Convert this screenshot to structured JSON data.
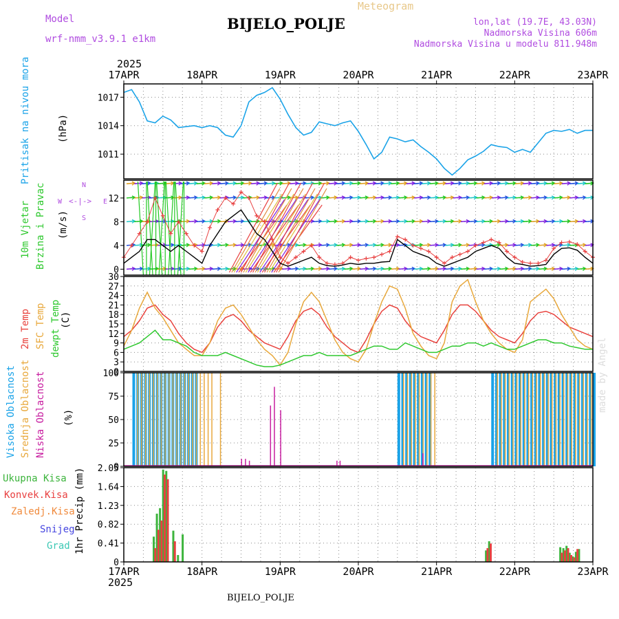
{
  "header": {
    "model_label": "Model",
    "model_name": "wrf-nmm_v3.9.1 e1km",
    "station": "BIJELO_POLJE",
    "meteogram": "Meteogram",
    "lonlat": "lon,lat (19.7E, 43.03N)",
    "elevation": "Nadmorska Visina 606m",
    "model_elevation": "Nadmorska Visina u modelu 811.948m",
    "footer_station": "BIJELO_POLJE",
    "credit": "made by Angel",
    "year_top": "2025",
    "year_bottom": "2025"
  },
  "colors": {
    "pressure": "#1aa3e8",
    "temp2m": "#e8413c",
    "sfc": "#e8a83c",
    "dewpt": "#2ec82e",
    "wind_speed": "#000000",
    "gust": "#e84040",
    "high_cloud": "#1aa3e8",
    "mid_cloud": "#e8a83c",
    "low_cloud": "#c81ea0",
    "total_precip": "#3cb43c",
    "conv_precip": "#e84040",
    "frozen": "#f08a3c",
    "snow": "#4646e0",
    "hail": "#3cc8b4",
    "purple_text": "#b04ce0"
  },
  "x_axis": {
    "dates": [
      "17APR",
      "18APR",
      "19APR",
      "20APR",
      "21APR",
      "22APR",
      "23APR"
    ]
  },
  "panel_labels": {
    "pressure": {
      "name": "Pritisak na nivou mora",
      "unit": "(hPa)"
    },
    "wind": {
      "name1": "10m Vjetar",
      "name2": "Brzina i Pravac",
      "unit": "(m/s)"
    },
    "temp": {
      "name1": "2m Temp",
      "name2": "SFC Temp",
      "name3": "dewpt Temp",
      "unit": "(C)"
    },
    "cloud": {
      "name1": "Visoka Oblacnost",
      "name2": "Srednja Oblacnost",
      "name3": "Niska Oblacnost",
      "unit": "(%)"
    },
    "precip": {
      "unit": "1hr Precip (mm)"
    }
  },
  "precip_legend": [
    "Ukupna Kisa",
    "Konvek.Kisa",
    "Zaledj.Kisa",
    "Snijeg",
    "Grad"
  ],
  "compass": {
    "n": "N",
    "s": "S",
    "e": "E",
    "w": "W"
  },
  "chart_data": [
    {
      "type": "line",
      "name": "pressure",
      "ylabel": "(hPa)",
      "ylim": [
        1008.4,
        1018.4
      ],
      "yticks": [
        1011,
        1014,
        1017
      ],
      "x_days": [
        0,
        0.1,
        0.2,
        0.3,
        0.4,
        0.5,
        0.6,
        0.7,
        0.8,
        0.9,
        1,
        1.1,
        1.2,
        1.3,
        1.4,
        1.5,
        1.6,
        1.7,
        1.8,
        1.9,
        2,
        2.1,
        2.2,
        2.3,
        2.4,
        2.5,
        2.6,
        2.7,
        2.8,
        2.9,
        3,
        3.1,
        3.2,
        3.3,
        3.4,
        3.5,
        3.6,
        3.7,
        3.8,
        3.9,
        4,
        4.1,
        4.2,
        4.3,
        4.4,
        4.5,
        4.6,
        4.7,
        4.8,
        4.9,
        5,
        5.1,
        5.2,
        5.3,
        5.4,
        5.5,
        5.6,
        5.7,
        5.8,
        5.9,
        6
      ],
      "values": [
        1017.5,
        1017.8,
        1016.5,
        1014.5,
        1014.3,
        1015.0,
        1014.6,
        1013.8,
        1013.9,
        1014.0,
        1013.8,
        1014.0,
        1013.8,
        1013.0,
        1012.8,
        1014.0,
        1016.5,
        1017.2,
        1017.5,
        1018.0,
        1016.8,
        1015.2,
        1013.8,
        1013.0,
        1013.3,
        1014.4,
        1014.2,
        1014.0,
        1014.3,
        1014.5,
        1013.4,
        1012.0,
        1010.5,
        1011.2,
        1012.8,
        1012.6,
        1012.3,
        1012.5,
        1011.8,
        1011.2,
        1010.5,
        1009.5,
        1008.8,
        1009.5,
        1010.4,
        1010.8,
        1011.3,
        1012.0,
        1011.8,
        1011.7,
        1011.2,
        1011.5,
        1011.2,
        1012.2,
        1013.2,
        1013.5,
        1013.4,
        1013.6,
        1013.2,
        1013.5,
        1013.5
      ]
    },
    {
      "type": "line",
      "name": "wind",
      "ylabel": "(m/s)",
      "ylim": [
        -1,
        15
      ],
      "yticks": [
        0,
        4,
        8,
        12
      ],
      "x_days": [
        0,
        0.1,
        0.2,
        0.3,
        0.4,
        0.5,
        0.6,
        0.7,
        0.8,
        0.9,
        1,
        1.1,
        1.2,
        1.3,
        1.4,
        1.5,
        1.6,
        1.7,
        1.8,
        1.9,
        2,
        2.1,
        2.2,
        2.3,
        2.4,
        2.5,
        2.6,
        2.7,
        2.8,
        2.9,
        3,
        3.1,
        3.2,
        3.3,
        3.4,
        3.5,
        3.6,
        3.7,
        3.8,
        3.9,
        4,
        4.1,
        4.2,
        4.3,
        4.4,
        4.5,
        4.6,
        4.7,
        4.8,
        4.9,
        5,
        5.1,
        5.2,
        5.3,
        5.4,
        5.5,
        5.6,
        5.7,
        5.8,
        5.9,
        6
      ],
      "series": [
        {
          "key": "speed",
          "values": [
            1,
            2,
            3,
            5,
            5,
            4,
            3,
            4,
            3,
            2,
            1,
            4,
            6,
            8,
            9,
            10,
            8,
            6,
            5,
            3,
            1,
            0.5,
            1,
            1.5,
            2,
            1,
            0.6,
            0.5,
            0.7,
            1,
            0.8,
            1,
            1,
            1.2,
            1.3,
            5,
            4,
            3,
            2.5,
            2,
            1,
            0.5,
            1,
            1.5,
            2,
            3,
            3.5,
            4,
            3.5,
            2,
            1,
            0.8,
            0.5,
            0.6,
            0.8,
            2.5,
            3.5,
            3.6,
            3.2,
            2,
            1
          ]
        },
        {
          "key": "gust",
          "values": [
            2,
            4,
            6,
            8,
            12,
            9,
            6,
            8,
            6,
            4,
            3,
            7,
            10,
            12,
            11,
            13,
            12,
            9,
            8,
            5,
            2,
            1,
            2,
            3,
            4,
            2,
            1,
            0.8,
            1,
            2,
            1.5,
            1.8,
            2,
            2.5,
            3,
            5.5,
            5,
            4,
            3.5,
            3,
            2,
            1,
            2,
            2.5,
            3,
            4,
            4.5,
            5,
            4.5,
            3,
            2,
            1.2,
            1,
            1,
            1.5,
            3.5,
            4.5,
            4.6,
            4.2,
            3,
            2
          ]
        }
      ]
    },
    {
      "type": "line",
      "name": "temperature",
      "ylabel": "(C)",
      "ylim": [
        0,
        30
      ],
      "yticks": [
        0,
        3,
        6,
        9,
        12,
        15,
        18,
        21,
        24,
        27,
        30
      ],
      "x_days": [
        0,
        0.1,
        0.2,
        0.3,
        0.4,
        0.5,
        0.6,
        0.7,
        0.8,
        0.9,
        1,
        1.1,
        1.2,
        1.3,
        1.4,
        1.5,
        1.6,
        1.7,
        1.8,
        1.9,
        2,
        2.1,
        2.2,
        2.3,
        2.4,
        2.5,
        2.6,
        2.7,
        2.8,
        2.9,
        3,
        3.1,
        3.2,
        3.3,
        3.4,
        3.5,
        3.6,
        3.7,
        3.8,
        3.9,
        4,
        4.1,
        4.2,
        4.3,
        4.4,
        4.5,
        4.6,
        4.7,
        4.8,
        4.9,
        5,
        5.1,
        5.2,
        5.3,
        5.4,
        5.5,
        5.6,
        5.7,
        5.8,
        5.9,
        6
      ],
      "series": [
        {
          "key": "t2m",
          "values": [
            11,
            13,
            16,
            20,
            21,
            18,
            16,
            12,
            9,
            7,
            6,
            9,
            14,
            17,
            18,
            16,
            13,
            11,
            9,
            8,
            7,
            11,
            16,
            19,
            20,
            18,
            14,
            11,
            9,
            7,
            6,
            10,
            15,
            19,
            21,
            20,
            16,
            13,
            11,
            10,
            9,
            13,
            18,
            21,
            21,
            19,
            16,
            13,
            11,
            10,
            9,
            12,
            16,
            18.5,
            19,
            18,
            16,
            14,
            13,
            12,
            11
          ]
        },
        {
          "key": "sfc",
          "values": [
            8,
            13,
            20,
            25,
            20,
            17,
            13,
            9,
            7,
            5,
            5,
            9,
            16,
            20,
            21,
            18,
            14,
            10,
            7,
            5,
            2,
            6,
            15,
            22,
            25,
            22,
            16,
            10,
            6,
            4,
            3,
            7,
            15,
            22,
            27,
            26,
            20,
            12,
            8,
            5,
            4,
            9,
            22,
            27,
            29,
            22,
            16,
            12,
            9,
            7,
            6,
            10,
            22,
            24,
            26,
            23,
            18,
            14,
            10,
            8,
            7
          ]
        },
        {
          "key": "dewpt",
          "values": [
            7,
            8,
            9,
            11,
            13,
            10,
            10,
            9,
            8,
            6,
            5,
            5,
            5,
            6,
            5,
            4,
            3,
            2,
            1.5,
            1.5,
            2,
            3,
            4,
            5,
            5,
            6,
            5,
            5,
            5,
            5,
            6,
            7,
            8,
            8,
            7,
            7,
            9,
            8,
            7,
            6,
            6,
            7,
            8,
            8,
            9,
            9,
            8,
            9,
            8,
            7,
            7,
            8,
            9,
            10,
            10,
            9,
            9,
            8,
            7.5,
            7,
            7
          ]
        }
      ]
    },
    {
      "type": "bar",
      "name": "cloud_cover",
      "ylabel": "(%)",
      "ylim": [
        0,
        100
      ],
      "yticks": [
        0,
        25,
        50,
        75,
        100
      ],
      "bars": [
        {
          "key": "high",
          "ranges": [
            [
              0.11,
              0.95
            ],
            [
              3.5,
              3.9
            ],
            [
              4.7,
              6.0
            ]
          ],
          "value": 100
        },
        {
          "key": "mid",
          "ranges": [
            [
              0.15,
              1.1
            ],
            [
              3.55,
              3.95
            ],
            [
              4.75,
              5.95
            ]
          ],
          "value": 100
        },
        {
          "key": "mid_single",
          "x": [
            1.12,
            1.23
          ],
          "value": 100
        },
        {
          "key": "low",
          "x": [
            1.5,
            1.55,
            1.6,
            1.87,
            1.92,
            2.0,
            2.72,
            2.76,
            3.82
          ],
          "values": [
            8,
            8,
            6,
            65,
            85,
            60,
            6,
            6,
            14
          ]
        }
      ]
    },
    {
      "type": "bar",
      "name": "precipitation",
      "ylabel": "1hr Precip (mm)",
      "ylim": [
        0,
        2.05
      ],
      "yticks": [
        0,
        0.41,
        0.82,
        1.23,
        1.64,
        2.05
      ],
      "series": [
        {
          "key": "total",
          "x": [
            0.37,
            0.41,
            0.45,
            0.49,
            0.53,
            0.62,
            0.68,
            0.74,
            4.62,
            4.66,
            5.57,
            5.61,
            5.65,
            5.69,
            5.73,
            5.77,
            5.81
          ],
          "values": [
            0.55,
            1.05,
            1.17,
            2.01,
            1.98,
            0.68,
            0.15,
            0.6,
            0.25,
            0.45,
            0.32,
            0.3,
            0.35,
            0.2,
            0.12,
            0.22,
            0.28
          ]
        },
        {
          "key": "conv",
          "x": [
            0.39,
            0.43,
            0.47,
            0.51,
            0.55,
            0.64,
            4.64,
            4.68,
            5.59,
            5.63,
            5.67,
            5.71,
            5.75,
            5.79
          ],
          "values": [
            0.3,
            0.7,
            0.9,
            1.9,
            1.8,
            0.45,
            0.3,
            0.4,
            0.2,
            0.25,
            0.3,
            0.15,
            0.1,
            0.28
          ]
        }
      ]
    }
  ]
}
